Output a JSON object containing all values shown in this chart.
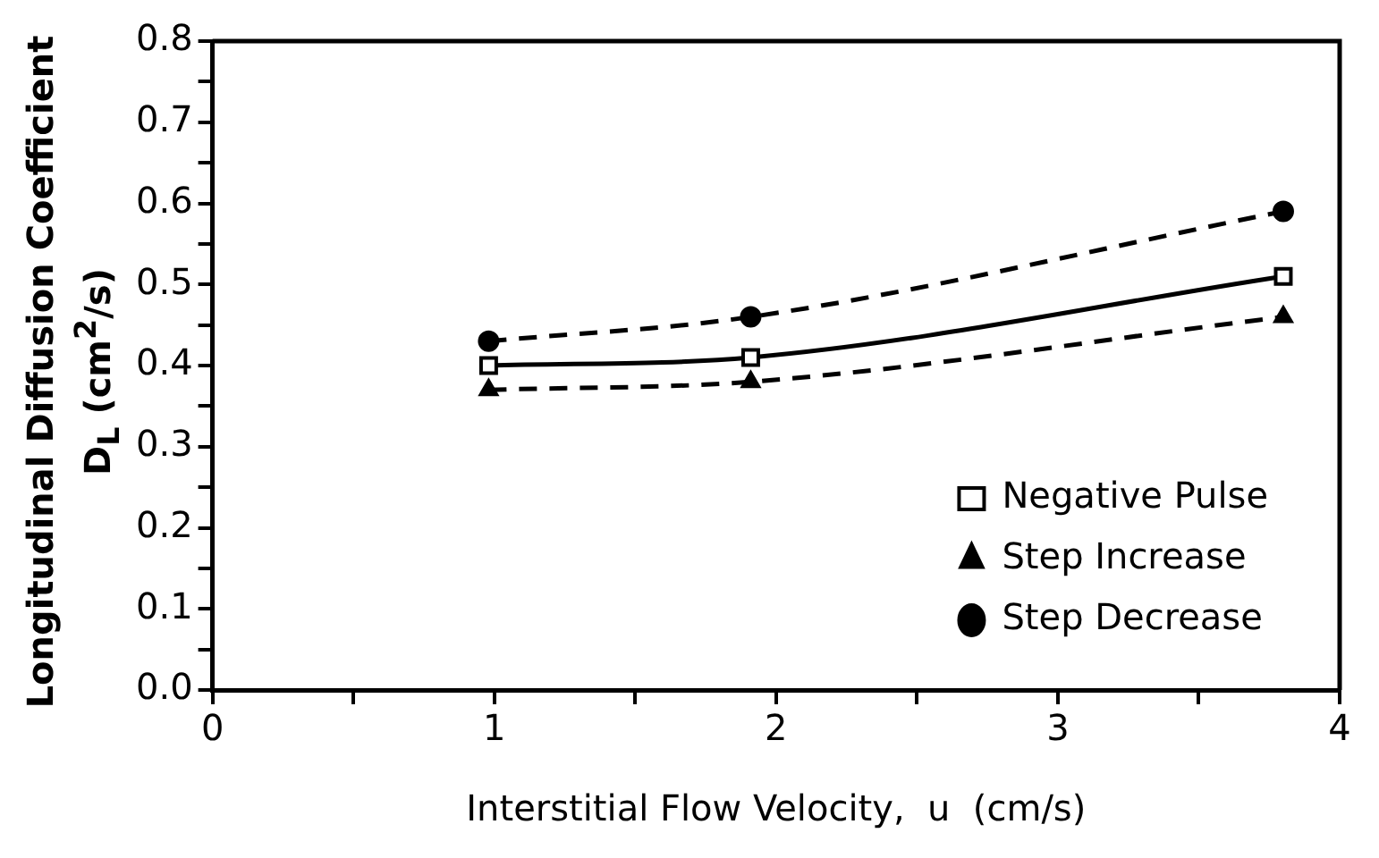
{
  "chart_data": {
    "type": "line",
    "xlabel": "Interstitial Flow Velocity,  u  (cm/s)",
    "ylabel": "Longitudinal Diffusion Coefficient\nD$_{L}$  (cm$^{2}$/s)",
    "xlim": [
      0,
      4
    ],
    "xticks": [
      0,
      {
        "value": 0.5,
        "label": null
      },
      1,
      {
        "value": 1.5,
        "label": null
      },
      2,
      {
        "value": 2.5,
        "label": null
      },
      3,
      {
        "value": 3.5,
        "label": null
      },
      4
    ],
    "ylim": [
      0,
      0.8
    ],
    "yticks": [
      {
        "value": 0,
        "label": "0.0"
      },
      {
        "value": 0.05,
        "label": null
      },
      {
        "value": 0.1,
        "label": "0.1"
      },
      {
        "value": 0.15,
        "label": null
      },
      {
        "value": 0.2,
        "label": "0.2"
      },
      {
        "value": 0.25,
        "label": null
      },
      {
        "value": 0.3,
        "label": "0.3"
      },
      {
        "value": 0.35,
        "label": null
      },
      {
        "value": 0.4,
        "label": "0.4"
      },
      {
        "value": 0.45,
        "label": null
      },
      {
        "value": 0.5,
        "label": "0.5"
      },
      {
        "value": 0.55,
        "label": null
      },
      {
        "value": 0.6,
        "label": "0.6"
      },
      {
        "value": 0.65,
        "label": null
      },
      {
        "value": 0.7,
        "label": "0.7"
      },
      {
        "value": 0.75,
        "label": null
      },
      {
        "value": 0.8,
        "label": "0.8"
      }
    ],
    "x": [
      0.98,
      1.91,
      3.8
    ],
    "series": [
      {
        "name": "Negative Pulse",
        "color": "#000000",
        "values": [
          0.4,
          0.41,
          0.51
        ],
        "marker": "square",
        "line_style": "solid"
      },
      {
        "name": "Step Increase",
        "color": "#000000",
        "values": [
          0.37,
          0.38,
          0.46
        ],
        "marker": "triangle",
        "line_style": "dashed"
      },
      {
        "name": "Step Decrease",
        "color": "#000000",
        "values": [
          0.43,
          0.46,
          0.59
        ],
        "marker": "circle",
        "line_style": "dashed"
      }
    ],
    "grid": false,
    "legend": "bottom right"
  }
}
